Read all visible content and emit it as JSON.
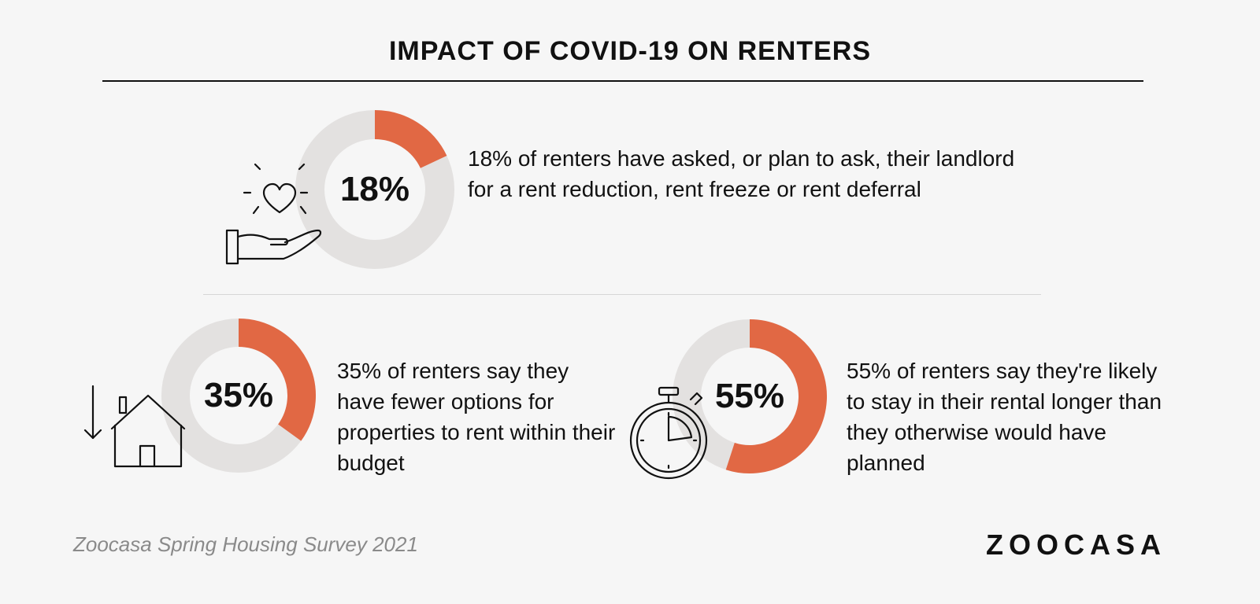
{
  "title": "IMPACT OF COVID-19 ON RENTERS",
  "colors": {
    "accent": "#e16844",
    "track": "#e3e1e0",
    "background": "#f6f6f6",
    "text": "#111111"
  },
  "chart_data": [
    {
      "type": "pie",
      "donut": true,
      "value": 18,
      "label": "18%",
      "description": "18% of renters have asked, or plan to ask, their landlord for a rent reduction, rent freeze or rent deferral",
      "icon": "heart-in-hand-icon"
    },
    {
      "type": "pie",
      "donut": true,
      "value": 35,
      "label": "35%",
      "description": "35% of renters say they have fewer options for properties to rent within their budget",
      "icon": "house-down-arrow-icon"
    },
    {
      "type": "pie",
      "donut": true,
      "value": 55,
      "label": "55%",
      "description": "55% of renters say they're likely to stay in their rental longer than they otherwise would have planned",
      "icon": "stopwatch-icon"
    }
  ],
  "footer": {
    "source": "Zoocasa Spring Housing Survey 2021",
    "logo": "ZOOCASA"
  }
}
